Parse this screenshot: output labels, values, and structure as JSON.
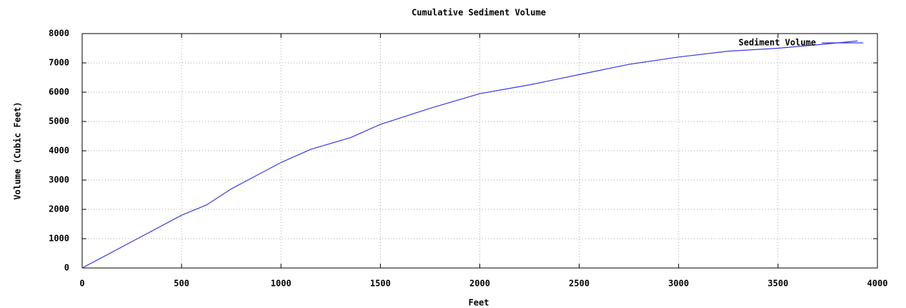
{
  "chart_data": {
    "type": "line",
    "title": "Cumulative Sediment Volume",
    "xlabel": "Feet",
    "ylabel": "Volume (Cubic Feet)",
    "x": [
      0,
      250,
      500,
      625,
      750,
      1000,
      1150,
      1350,
      1500,
      1750,
      2000,
      2250,
      2500,
      2750,
      3000,
      3250,
      3500,
      3750,
      3900
    ],
    "series": [
      {
        "name": "Sediment Volume",
        "color": "#3a3ae0",
        "values": [
          0,
          900,
          1800,
          2150,
          2700,
          3600,
          4050,
          4450,
          4900,
          5450,
          5950,
          6250,
          6600,
          6950,
          7200,
          7400,
          7500,
          7650,
          7750
        ]
      }
    ],
    "xlim": [
      0,
      4000
    ],
    "ylim": [
      0,
      8000
    ],
    "xticks": [
      0,
      500,
      1000,
      1500,
      2000,
      2500,
      3000,
      3500,
      4000
    ],
    "yticks": [
      0,
      1000,
      2000,
      3000,
      4000,
      5000,
      6000,
      7000,
      8000
    ],
    "grid": true,
    "legend": "top-right"
  }
}
